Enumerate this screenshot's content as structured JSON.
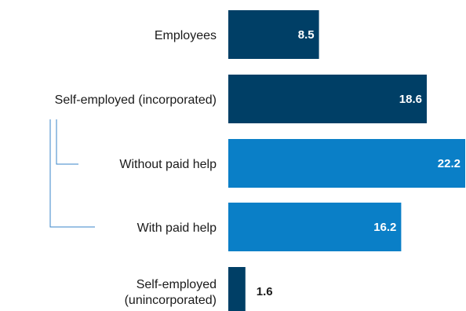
{
  "chart_data": {
    "type": "bar",
    "orientation": "horizontal",
    "categories": [
      "Employees",
      "Self-employed (incorporated)",
      "Without paid help",
      "With paid help",
      "Self-employed (unincorporated)"
    ],
    "label_lines": [
      [
        "Employees"
      ],
      [
        "Self-employed (incorporated)"
      ],
      [
        "Without paid help"
      ],
      [
        "With paid help"
      ],
      [
        "Self-employed",
        "(unincorporated)"
      ]
    ],
    "values": [
      8.5,
      18.6,
      22.2,
      16.2,
      1.6
    ],
    "value_labels": [
      "8.5",
      "18.6",
      "22.2",
      "16.2",
      "1.6"
    ],
    "subcategory_of": [
      null,
      null,
      1,
      1,
      null
    ],
    "xlim": [
      0,
      22.2
    ],
    "grid": false,
    "legend": "none",
    "title": "",
    "xlabel": "",
    "ylabel": ""
  },
  "colors": {
    "primary": "#003f66",
    "secondary": "#0a7fc7",
    "value_text_on_bar": "#ffffff",
    "value_text_outside": "#1a1a1a",
    "connector": "#3a86c8"
  }
}
